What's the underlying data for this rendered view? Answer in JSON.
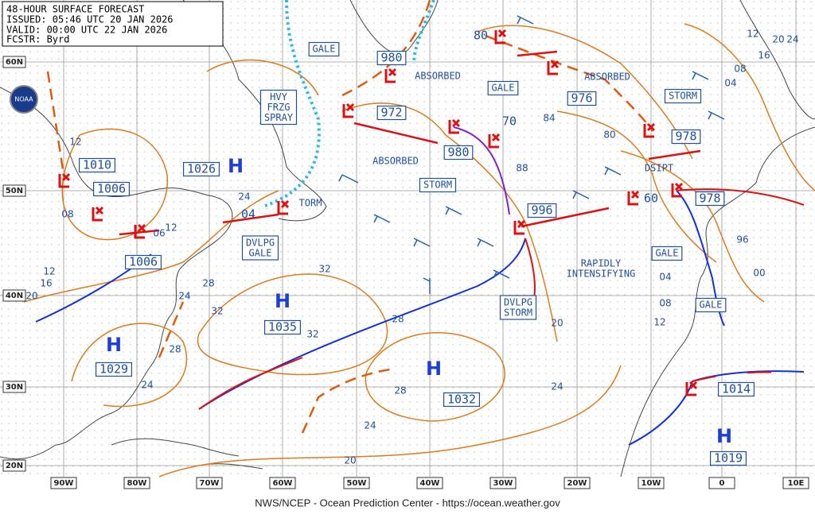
{
  "header": {
    "title": "48-HOUR SURFACE FORECAST",
    "issued": "ISSUED: 05:46 UTC 20 JAN 2026",
    "valid": "VALID:  00:00 UTC 22 JAN 2026",
    "forecaster": "FCSTR: Byrd"
  },
  "footer": "NWS/NCEP - Ocean Prediction Center - https://ocean.weather.gov",
  "logo": "NOAA",
  "longitude_labels": [
    "90W",
    "80W",
    "70W",
    "60W",
    "50W",
    "40W",
    "30W",
    "20W",
    "10W",
    "0",
    "10E"
  ],
  "latitude_labels": [
    "60N",
    "50N",
    "40N",
    "30N",
    "20N"
  ],
  "highs": [
    {
      "symbol": "H",
      "pressure": "1026"
    },
    {
      "symbol": "H",
      "pressure": "1035"
    },
    {
      "symbol": "H",
      "pressure": "1029"
    },
    {
      "symbol": "H",
      "pressure": "1032"
    },
    {
      "symbol": "H",
      "pressure": "1019"
    }
  ],
  "lows": [
    "1010",
    "1006",
    "1006",
    "980",
    "972",
    "980",
    "976",
    "80",
    "978",
    "978",
    "996",
    "1014",
    "04",
    "60",
    "70"
  ],
  "warnings": [
    "GALE",
    "STORM",
    "GALE",
    "HVY\nFRZG\nSPRAY",
    "ABSORBED",
    "ABSORBED",
    "ABSORBED",
    "STORM",
    "TORM",
    "DVLPG\nGALE",
    "RAPIDLY\nINTENSIFYING",
    "DVLPG\nSTORM",
    "GALE",
    "GALE",
    "DSIPT"
  ],
  "isobar_labels": [
    "12",
    "08",
    "12",
    "06",
    "12",
    "16",
    "20",
    "28",
    "24",
    "32",
    "32",
    "32",
    "28",
    "24",
    "28",
    "28",
    "24",
    "20",
    "20",
    "24",
    "84",
    "88",
    "80",
    "96",
    "00",
    "04",
    "08",
    "12",
    "08",
    "04",
    "12",
    "16",
    "20",
    "24",
    "24"
  ]
}
